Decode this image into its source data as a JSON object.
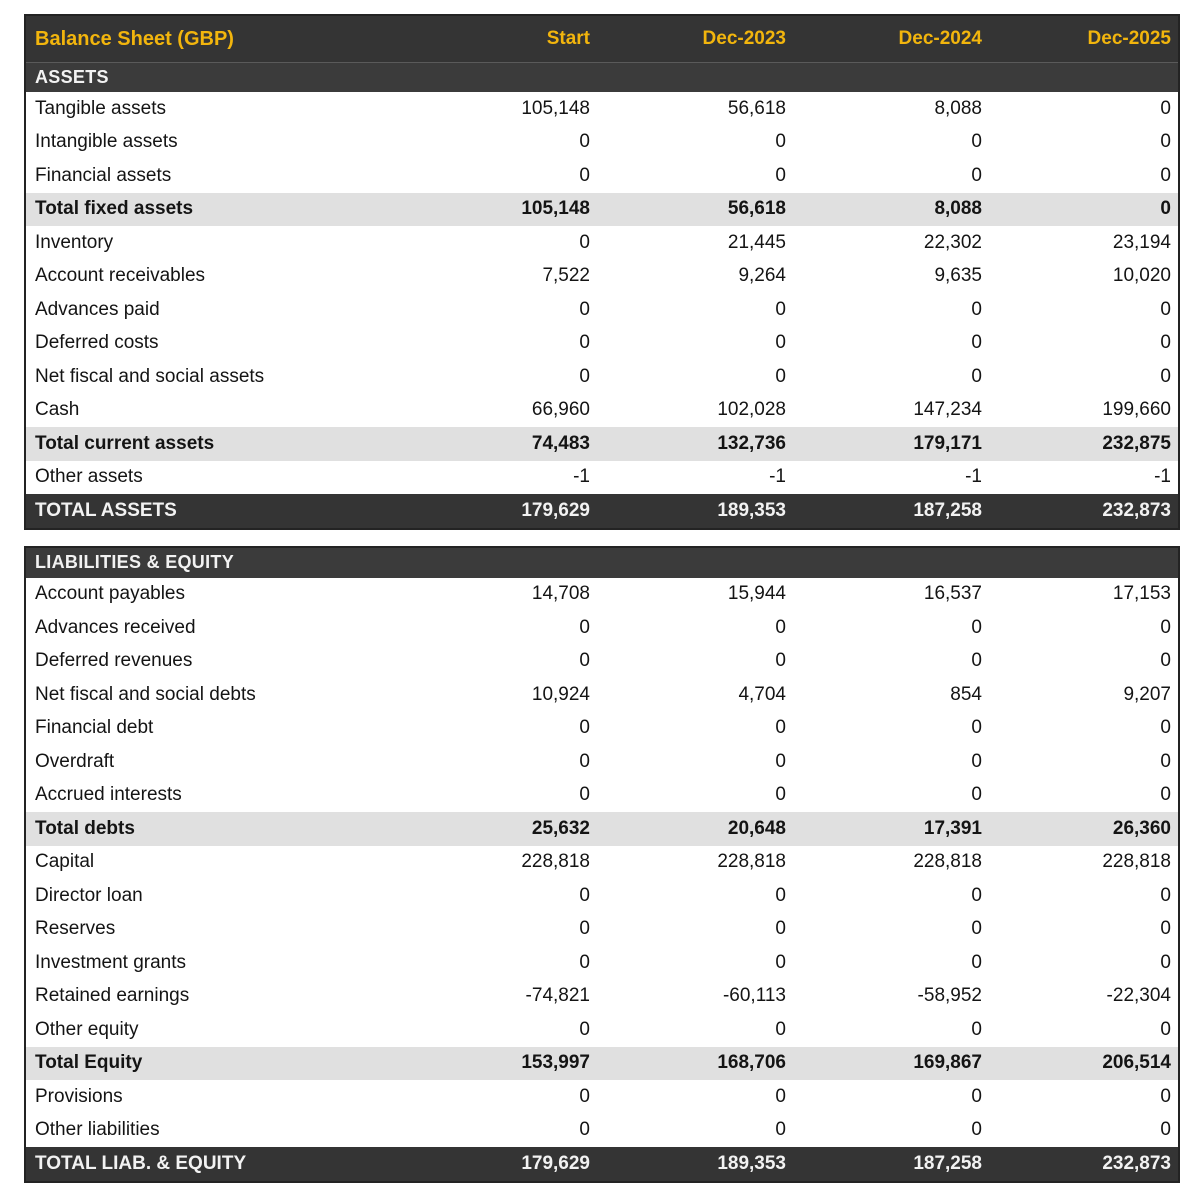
{
  "theme": {
    "accent": "#f2b50d",
    "dark": "#343434",
    "dark2": "#3b3b3b",
    "subtotal-bg": "#e0e0e0",
    "ink": "#141414",
    "light-text": "#f2f2f2"
  },
  "table": {
    "title": "Balance Sheet (GBP)",
    "columns": [
      "Start",
      "Dec-2023",
      "Dec-2024",
      "Dec-2025"
    ],
    "sections": [
      {
        "name": "ASSETS",
        "rows": [
          {
            "label": "Tangible assets",
            "type": "normal",
            "values": [
              "105,148",
              "56,618",
              "8,088",
              "0"
            ]
          },
          {
            "label": "Intangible assets",
            "type": "normal",
            "values": [
              "0",
              "0",
              "0",
              "0"
            ]
          },
          {
            "label": "Financial assets",
            "type": "normal",
            "values": [
              "0",
              "0",
              "0",
              "0"
            ]
          },
          {
            "label": "Total fixed assets",
            "type": "subtotal",
            "values": [
              "105,148",
              "56,618",
              "8,088",
              "0"
            ]
          },
          {
            "label": "Inventory",
            "type": "normal",
            "values": [
              "0",
              "21,445",
              "22,302",
              "23,194"
            ]
          },
          {
            "label": "Account receivables",
            "type": "normal",
            "values": [
              "7,522",
              "9,264",
              "9,635",
              "10,020"
            ]
          },
          {
            "label": "Advances paid",
            "type": "normal",
            "values": [
              "0",
              "0",
              "0",
              "0"
            ]
          },
          {
            "label": "Deferred costs",
            "type": "normal",
            "values": [
              "0",
              "0",
              "0",
              "0"
            ]
          },
          {
            "label": "Net fiscal and social assets",
            "type": "normal",
            "values": [
              "0",
              "0",
              "0",
              "0"
            ]
          },
          {
            "label": "Cash",
            "type": "normal",
            "values": [
              "66,960",
              "102,028",
              "147,234",
              "199,660"
            ]
          },
          {
            "label": "Total current assets",
            "type": "subtotal",
            "values": [
              "74,483",
              "132,736",
              "179,171",
              "232,875"
            ]
          },
          {
            "label": "Other assets",
            "type": "normal",
            "values": [
              "-1",
              "-1",
              "-1",
              "-1"
            ]
          },
          {
            "label": "TOTAL ASSETS",
            "type": "grand",
            "values": [
              "179,629",
              "189,353",
              "187,258",
              "232,873"
            ]
          }
        ]
      },
      {
        "name": "LIABILITIES & EQUITY",
        "rows": [
          {
            "label": "Account payables",
            "type": "normal",
            "values": [
              "14,708",
              "15,944",
              "16,537",
              "17,153"
            ]
          },
          {
            "label": "Advances received",
            "type": "normal",
            "values": [
              "0",
              "0",
              "0",
              "0"
            ]
          },
          {
            "label": "Deferred revenues",
            "type": "normal",
            "values": [
              "0",
              "0",
              "0",
              "0"
            ]
          },
          {
            "label": "Net fiscal and social debts",
            "type": "normal",
            "values": [
              "10,924",
              "4,704",
              "854",
              "9,207"
            ]
          },
          {
            "label": "Financial debt",
            "type": "normal",
            "values": [
              "0",
              "0",
              "0",
              "0"
            ]
          },
          {
            "label": "Overdraft",
            "type": "normal",
            "values": [
              "0",
              "0",
              "0",
              "0"
            ]
          },
          {
            "label": "Accrued interests",
            "type": "normal",
            "values": [
              "0",
              "0",
              "0",
              "0"
            ]
          },
          {
            "label": "Total debts",
            "type": "subtotal",
            "values": [
              "25,632",
              "20,648",
              "17,391",
              "26,360"
            ]
          },
          {
            "label": "Capital",
            "type": "normal",
            "values": [
              "228,818",
              "228,818",
              "228,818",
              "228,818"
            ]
          },
          {
            "label": "Director loan",
            "type": "normal",
            "values": [
              "0",
              "0",
              "0",
              "0"
            ]
          },
          {
            "label": "Reserves",
            "type": "normal",
            "values": [
              "0",
              "0",
              "0",
              "0"
            ]
          },
          {
            "label": "Investment grants",
            "type": "normal",
            "values": [
              "0",
              "0",
              "0",
              "0"
            ]
          },
          {
            "label": "Retained earnings",
            "type": "normal",
            "values": [
              "-74,821",
              "-60,113",
              "-58,952",
              "-22,304"
            ]
          },
          {
            "label": "Other equity",
            "type": "normal",
            "values": [
              "0",
              "0",
              "0",
              "0"
            ]
          },
          {
            "label": "Total Equity",
            "type": "subtotal",
            "values": [
              "153,997",
              "168,706",
              "169,867",
              "206,514"
            ]
          },
          {
            "label": "Provisions",
            "type": "normal",
            "values": [
              "0",
              "0",
              "0",
              "0"
            ]
          },
          {
            "label": "Other liabilities",
            "type": "normal",
            "values": [
              "0",
              "0",
              "0",
              "0"
            ]
          },
          {
            "label": "TOTAL LIAB. & EQUITY",
            "type": "grand",
            "values": [
              "179,629",
              "189,353",
              "187,258",
              "232,873"
            ]
          }
        ]
      }
    ]
  }
}
